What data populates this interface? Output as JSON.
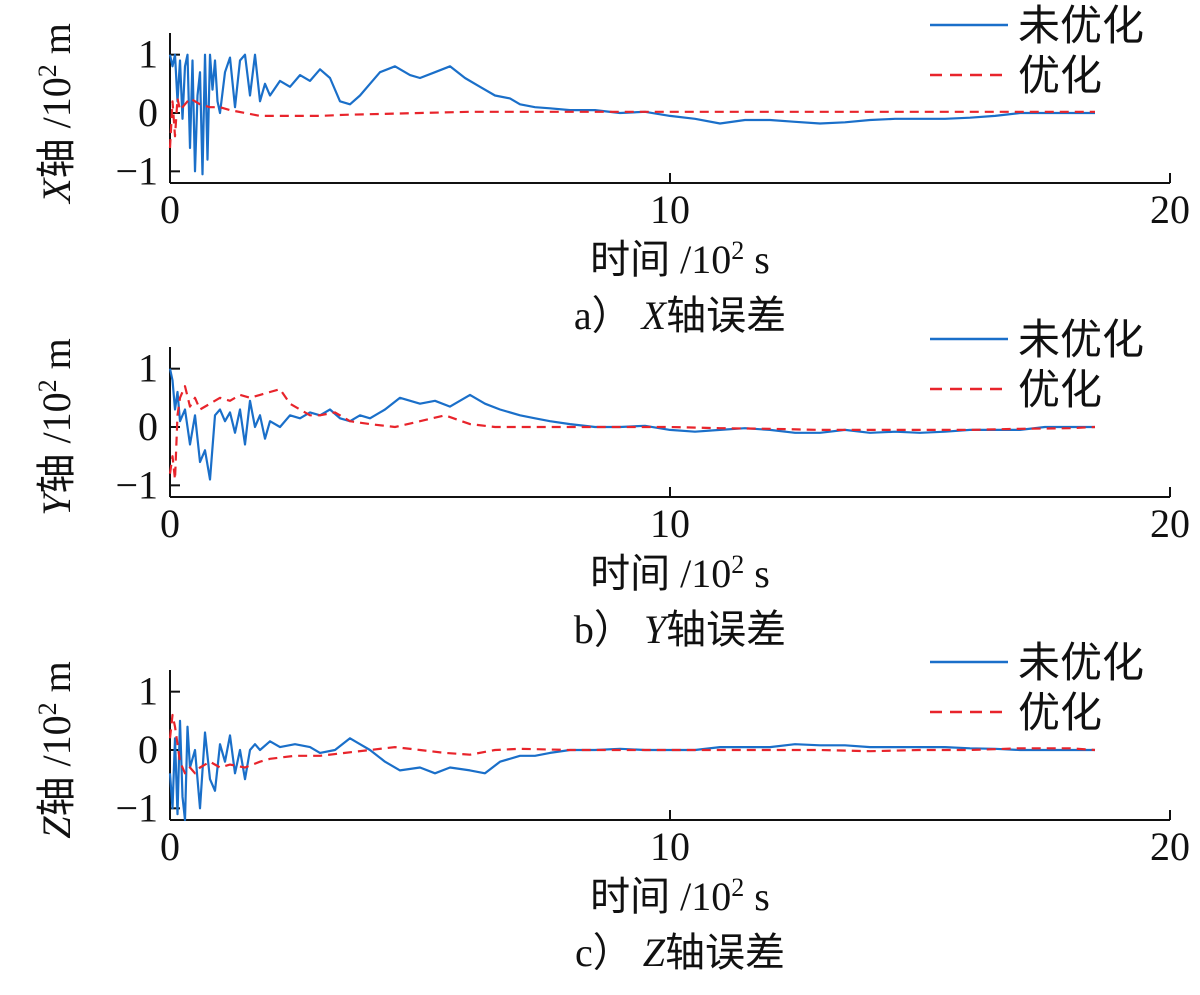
{
  "colors": {
    "unoptimized": "#1a6fc9",
    "optimized": "#e8242b",
    "axis": "#111111"
  },
  "chart_data": [
    {
      "type": "line",
      "panel": "a",
      "caption_prefix": "a）",
      "caption_axis": "X",
      "caption_suffix": "轴误差",
      "ylabel_axis": "X",
      "ylabel_rest": "轴 /10",
      "ylabel_exp": "2",
      "ylabel_unit": " m",
      "xlabel_text": "时间 /10",
      "xlabel_exp": "2",
      "xlabel_unit": " s",
      "xlim": [
        0,
        20
      ],
      "ylim": [
        -1.2,
        1.2
      ],
      "xticks": [
        0,
        10,
        20
      ],
      "yticks": [
        -1,
        0,
        1
      ],
      "legend_position": "top-right",
      "series": [
        {
          "name": "未优化",
          "style": "solid",
          "x": [
            0,
            0.05,
            0.1,
            0.15,
            0.2,
            0.25,
            0.3,
            0.35,
            0.4,
            0.45,
            0.5,
            0.55,
            0.6,
            0.65,
            0.7,
            0.75,
            0.8,
            0.85,
            0.9,
            0.95,
            1.0,
            1.1,
            1.2,
            1.3,
            1.4,
            1.5,
            1.6,
            1.7,
            1.8,
            1.9,
            2.0,
            2.2,
            2.4,
            2.6,
            2.8,
            3.0,
            3.2,
            3.4,
            3.6,
            3.8,
            4.0,
            4.2,
            4.5,
            4.8,
            5.0,
            5.3,
            5.6,
            5.9,
            6.2,
            6.5,
            6.8,
            7.0,
            7.3,
            7.6,
            8.0,
            8.5,
            9.0,
            9.5,
            10.0,
            10.5,
            11.0,
            11.5,
            12.0,
            12.5,
            13.0,
            13.5,
            14.0,
            14.5,
            15.0,
            15.5,
            16.0,
            16.5,
            17.0,
            17.5,
            18.0,
            18.5
          ],
          "values": [
            1.0,
            0.8,
            1.0,
            0.2,
            0.9,
            -0.1,
            0.8,
            1.0,
            -0.6,
            0.9,
            -1.0,
            0.3,
            0.7,
            -1.05,
            1.0,
            -0.8,
            1.0,
            0.4,
            0.9,
            0.2,
            0.0,
            0.7,
            0.95,
            0.1,
            0.9,
            1.0,
            0.3,
            1.0,
            0.2,
            0.5,
            0.3,
            0.55,
            0.45,
            0.65,
            0.55,
            0.75,
            0.6,
            0.2,
            0.15,
            0.3,
            0.5,
            0.7,
            0.8,
            0.65,
            0.6,
            0.7,
            0.8,
            0.6,
            0.45,
            0.3,
            0.25,
            0.15,
            0.1,
            0.08,
            0.05,
            0.05,
            0.0,
            0.02,
            -0.05,
            -0.1,
            -0.18,
            -0.12,
            -0.12,
            -0.15,
            -0.18,
            -0.16,
            -0.12,
            -0.1,
            -0.1,
            -0.1,
            -0.08,
            -0.05,
            0.0,
            0.0,
            0.0,
            0.0
          ]
        },
        {
          "name": "优化",
          "style": "dashed",
          "x": [
            0,
            0.05,
            0.1,
            0.15,
            0.2,
            0.3,
            0.4,
            0.5,
            0.6,
            0.8,
            1.0,
            1.2,
            1.5,
            1.8,
            2.0,
            2.5,
            3.0,
            3.5,
            4.0,
            5.0,
            6.0,
            7.0,
            8.0,
            9.0,
            10.0,
            11.0,
            12.0,
            13.0,
            14.0,
            15.0,
            16.0,
            17.0,
            18.0,
            18.5
          ],
          "values": [
            -0.6,
            0.2,
            -0.4,
            0.25,
            0.05,
            0.15,
            0.25,
            0.2,
            0.15,
            0.1,
            0.1,
            0.05,
            0.0,
            -0.05,
            -0.05,
            -0.05,
            -0.05,
            -0.03,
            -0.02,
            0.0,
            0.02,
            0.02,
            0.02,
            0.02,
            0.02,
            0.02,
            0.02,
            0.02,
            0.02,
            0.02,
            0.02,
            0.02,
            0.02,
            0.02
          ]
        }
      ]
    },
    {
      "type": "line",
      "panel": "b",
      "caption_prefix": "b）",
      "caption_axis": "Y",
      "caption_suffix": "轴误差",
      "ylabel_axis": "Y",
      "ylabel_rest": "轴 /10",
      "ylabel_exp": "2",
      "ylabel_unit": " m",
      "xlabel_text": "时间 /10",
      "xlabel_exp": "2",
      "xlabel_unit": " s",
      "xlim": [
        0,
        20
      ],
      "ylim": [
        -1.2,
        1.2
      ],
      "xticks": [
        0,
        10,
        20
      ],
      "yticks": [
        -1,
        0,
        1
      ],
      "legend_position": "top-right",
      "series": [
        {
          "name": "未优化",
          "style": "solid",
          "x": [
            0,
            0.05,
            0.1,
            0.15,
            0.2,
            0.3,
            0.4,
            0.5,
            0.6,
            0.7,
            0.8,
            0.9,
            1.0,
            1.1,
            1.2,
            1.3,
            1.4,
            1.5,
            1.6,
            1.7,
            1.8,
            1.9,
            2.0,
            2.2,
            2.4,
            2.6,
            2.8,
            3.0,
            3.2,
            3.4,
            3.6,
            3.8,
            4.0,
            4.3,
            4.6,
            5.0,
            5.3,
            5.6,
            6.0,
            6.3,
            6.6,
            7.0,
            7.3,
            7.6,
            8.0,
            8.5,
            9.0,
            9.5,
            10.0,
            10.5,
            11.0,
            11.5,
            12.0,
            12.5,
            13.0,
            13.5,
            14.0,
            14.5,
            15.0,
            15.5,
            16.0,
            16.5,
            17.0,
            17.5,
            18.0,
            18.5
          ],
          "values": [
            1.0,
            0.8,
            0.3,
            0.6,
            0.1,
            0.3,
            -0.3,
            0.2,
            -0.6,
            -0.4,
            -0.9,
            0.2,
            0.3,
            0.1,
            0.25,
            -0.1,
            0.3,
            -0.3,
            0.45,
            0.0,
            0.2,
            -0.2,
            0.1,
            0.0,
            0.2,
            0.15,
            0.25,
            0.2,
            0.3,
            0.15,
            0.1,
            0.2,
            0.15,
            0.3,
            0.5,
            0.4,
            0.45,
            0.35,
            0.55,
            0.4,
            0.3,
            0.2,
            0.15,
            0.1,
            0.05,
            0.0,
            0.0,
            0.02,
            -0.05,
            -0.08,
            -0.05,
            -0.02,
            -0.05,
            -0.1,
            -0.1,
            -0.05,
            -0.1,
            -0.08,
            -0.1,
            -0.08,
            -0.05,
            -0.05,
            -0.05,
            0.0,
            0.0,
            0.0
          ]
        },
        {
          "name": "优化",
          "style": "dashed",
          "x": [
            0,
            0.05,
            0.1,
            0.15,
            0.2,
            0.3,
            0.4,
            0.5,
            0.6,
            0.8,
            1.0,
            1.2,
            1.4,
            1.6,
            1.8,
            2.0,
            2.2,
            2.4,
            2.6,
            2.8,
            3.0,
            3.3,
            3.6,
            4.0,
            4.5,
            5.0,
            5.5,
            6.0,
            6.5,
            7.0,
            8.0,
            9.0,
            10.0,
            11.0,
            12.0,
            13.0,
            14.0,
            15.0,
            16.0,
            17.0,
            18.0,
            18.5
          ],
          "values": [
            -0.8,
            -0.5,
            -0.9,
            0.2,
            0.5,
            0.7,
            0.35,
            0.5,
            0.3,
            0.4,
            0.5,
            0.45,
            0.55,
            0.5,
            0.55,
            0.6,
            0.65,
            0.4,
            0.3,
            0.2,
            0.2,
            0.25,
            0.1,
            0.05,
            0.0,
            0.1,
            0.2,
            0.05,
            0.0,
            0.0,
            0.0,
            0.0,
            0.0,
            -0.02,
            -0.03,
            -0.05,
            -0.05,
            -0.05,
            -0.05,
            -0.03,
            -0.02,
            0.0
          ]
        }
      ]
    },
    {
      "type": "line",
      "panel": "c",
      "caption_prefix": "c）",
      "caption_axis": "Z",
      "caption_suffix": "轴误差",
      "ylabel_axis": "Z",
      "ylabel_rest": "轴 /10",
      "ylabel_exp": "2",
      "ylabel_unit": " m",
      "xlabel_text": "时间 /10",
      "xlabel_exp": "2",
      "xlabel_unit": " s",
      "xlim": [
        0,
        20
      ],
      "ylim": [
        -1.2,
        1.2
      ],
      "xticks": [
        0,
        10,
        20
      ],
      "yticks": [
        -1,
        0,
        1
      ],
      "legend_position": "top-right",
      "series": [
        {
          "name": "未优化",
          "style": "solid",
          "x": [
            0,
            0.05,
            0.1,
            0.15,
            0.2,
            0.25,
            0.3,
            0.35,
            0.4,
            0.5,
            0.6,
            0.7,
            0.8,
            0.9,
            1.0,
            1.1,
            1.2,
            1.3,
            1.4,
            1.5,
            1.6,
            1.7,
            1.8,
            2.0,
            2.2,
            2.5,
            2.8,
            3.0,
            3.3,
            3.6,
            3.8,
            4.0,
            4.3,
            4.6,
            5.0,
            5.3,
            5.6,
            6.0,
            6.3,
            6.6,
            7.0,
            7.3,
            7.6,
            8.0,
            8.5,
            9.0,
            9.5,
            10.0,
            10.5,
            11.0,
            11.5,
            12.0,
            12.5,
            13.0,
            13.5,
            14.0,
            14.5,
            15.0,
            15.5,
            16.0,
            16.5,
            17.0,
            17.5,
            18.0,
            18.5
          ],
          "values": [
            -0.4,
            -1.0,
            0.2,
            -1.1,
            0.5,
            -0.8,
            -1.2,
            0.4,
            -0.3,
            0.0,
            -1.0,
            0.3,
            -0.5,
            -0.7,
            0.1,
            -0.2,
            0.25,
            -0.4,
            0.0,
            -0.5,
            0.0,
            0.1,
            0.0,
            0.15,
            0.05,
            0.1,
            0.05,
            -0.05,
            0.0,
            0.2,
            0.1,
            0.0,
            -0.2,
            -0.35,
            -0.3,
            -0.4,
            -0.3,
            -0.35,
            -0.4,
            -0.2,
            -0.1,
            -0.1,
            -0.05,
            0.0,
            0.0,
            0.02,
            0.0,
            0.0,
            0.0,
            0.05,
            0.05,
            0.05,
            0.1,
            0.08,
            0.08,
            0.05,
            0.05,
            0.05,
            0.05,
            0.03,
            0.02,
            0.0,
            0.0,
            0.0,
            0.0
          ]
        },
        {
          "name": "优化",
          "style": "dashed",
          "x": [
            0,
            0.05,
            0.1,
            0.15,
            0.2,
            0.3,
            0.4,
            0.5,
            0.6,
            0.8,
            1.0,
            1.2,
            1.5,
            1.8,
            2.0,
            2.5,
            3.0,
            3.5,
            4.0,
            4.5,
            5.0,
            5.5,
            6.0,
            6.5,
            7.0,
            8.0,
            9.0,
            10.0,
            11.0,
            12.0,
            13.0,
            14.0,
            15.0,
            16.0,
            17.0,
            18.0,
            18.5
          ],
          "values": [
            0.2,
            0.6,
            0.4,
            0.1,
            -0.2,
            -0.4,
            -0.3,
            -0.4,
            -0.3,
            -0.2,
            -0.3,
            -0.25,
            -0.3,
            -0.2,
            -0.15,
            -0.1,
            -0.1,
            -0.05,
            0.0,
            0.05,
            0.0,
            -0.05,
            -0.08,
            0.0,
            0.02,
            0.0,
            0.0,
            0.0,
            0.0,
            0.0,
            0.0,
            -0.02,
            0.0,
            0.0,
            0.03,
            0.03,
            0.0
          ]
        }
      ]
    }
  ]
}
